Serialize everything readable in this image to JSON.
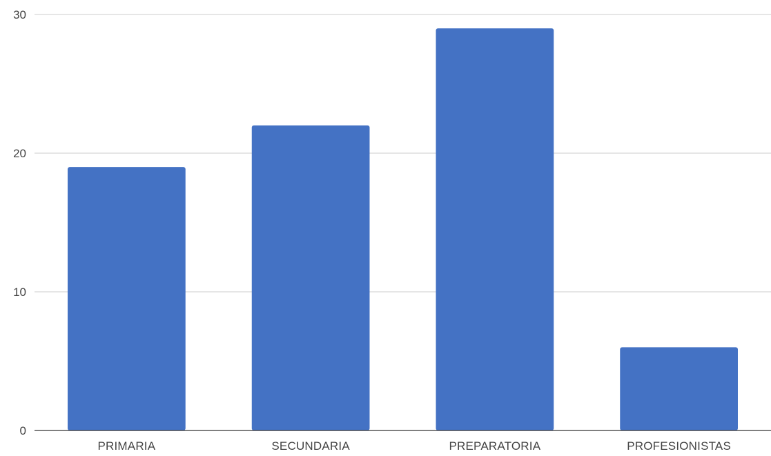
{
  "chart_data": {
    "type": "bar",
    "categories": [
      "PRIMARIA",
      "SECUNDARIA",
      "PREPARATORIA",
      "PROFESIONISTAS"
    ],
    "values": [
      19,
      22,
      29,
      6
    ],
    "ylim": [
      0,
      30
    ],
    "yticks": [
      "0",
      "10",
      "20",
      "30"
    ],
    "ytick_values": [
      0,
      10,
      20,
      30
    ],
    "grid": true,
    "legend": "none",
    "colors": {
      "bar": "#4472c4",
      "grid": "#cccccc",
      "axis": "#333333"
    }
  }
}
